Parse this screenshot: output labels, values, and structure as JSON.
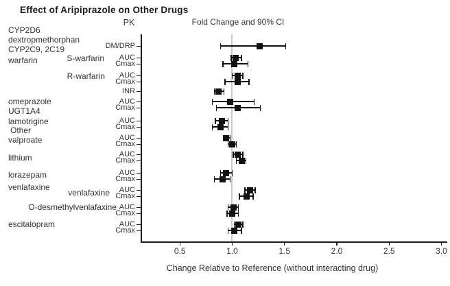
{
  "title": "Effect of Aripiprazole on Other Drugs",
  "headers": {
    "pk": "PK",
    "fold_change": "Fold Change and 90% CI"
  },
  "x_axis": {
    "label": "Change Relative to Reference (without interacting drug)",
    "ticks": [
      "0.5",
      "1.0",
      "1.5",
      "2.0",
      "2.5",
      "3.0"
    ],
    "reference_value": 1.0
  },
  "left_column": {
    "group_labels": [
      "CYP2D6",
      "dextropmethorphan",
      "CYP2C9, 2C19",
      "warfarin",
      "omeprazole",
      "UGT1A4",
      "lamotrigine",
      "Other",
      "valproate",
      "lithium",
      "lorazepam",
      "venlafaxine",
      "escitalopram"
    ],
    "sub_labels": [
      "S-warfarin",
      "R-warfarin",
      "venlafaxine",
      "O-desmethylvenlafaxine"
    ]
  },
  "chart_data": {
    "type": "scatter",
    "variant": "forest-plot",
    "title": "Effect of Aripiprazole on Other Drugs",
    "column_header": "Fold Change and 90% CI",
    "xlabel": "Change Relative to Reference (without interacting drug)",
    "xlim": [
      0.12,
      3.05
    ],
    "x_ticks": [
      0.5,
      1.0,
      1.5,
      2.0,
      2.5,
      3.0
    ],
    "reference_line_x": 1.0,
    "marker": "black-square",
    "ci_level": "90%",
    "rows": [
      {
        "section": "CYP2D6",
        "drug": "dextropmethorphan",
        "analyte": "",
        "pk": "DM/DRP",
        "value": 1.26,
        "ci_low": 0.89,
        "ci_high": 1.51
      },
      {
        "section": "CYP2C9, 2C19",
        "drug": "warfarin",
        "analyte": "S-warfarin",
        "pk": "AUC",
        "value": 1.03,
        "ci_low": 0.99,
        "ci_high": 1.09
      },
      {
        "section": "CYP2C9, 2C19",
        "drug": "warfarin",
        "analyte": "S-warfarin",
        "pk": "Cmax",
        "value": 1.02,
        "ci_low": 0.91,
        "ci_high": 1.15
      },
      {
        "section": "CYP2C9, 2C19",
        "drug": "warfarin",
        "analyte": "R-warfarin",
        "pk": "AUC",
        "value": 1.05,
        "ci_low": 1.0,
        "ci_high": 1.1
      },
      {
        "section": "CYP2C9, 2C19",
        "drug": "warfarin",
        "analyte": "R-warfarin",
        "pk": "Cmax",
        "value": 1.05,
        "ci_low": 0.93,
        "ci_high": 1.16
      },
      {
        "section": "CYP2C9, 2C19",
        "drug": "warfarin",
        "analyte": "",
        "pk": "INR",
        "value": 0.87,
        "ci_low": 0.83,
        "ci_high": 0.92
      },
      {
        "section": "CYP2C9, 2C19",
        "drug": "omeprazole",
        "analyte": "",
        "pk": "AUC",
        "value": 0.98,
        "ci_low": 0.81,
        "ci_high": 1.21
      },
      {
        "section": "CYP2C9, 2C19",
        "drug": "omeprazole",
        "analyte": "",
        "pk": "Cmax",
        "value": 1.05,
        "ci_low": 0.85,
        "ci_high": 1.27
      },
      {
        "section": "UGT1A4",
        "drug": "lamotrigine",
        "analyte": "",
        "pk": "AUC",
        "value": 0.9,
        "ci_low": 0.84,
        "ci_high": 0.96
      },
      {
        "section": "UGT1A4",
        "drug": "lamotrigine",
        "analyte": "",
        "pk": "Cmax",
        "value": 0.89,
        "ci_low": 0.81,
        "ci_high": 0.96
      },
      {
        "section": "Other",
        "drug": "valproate",
        "analyte": "",
        "pk": "AUC",
        "value": 0.94,
        "ci_low": 0.92,
        "ci_high": 0.98
      },
      {
        "section": "Other",
        "drug": "valproate",
        "analyte": "",
        "pk": "Cmax",
        "value": 1.0,
        "ci_low": 0.96,
        "ci_high": 1.04
      },
      {
        "section": "Other",
        "drug": "lithium",
        "analyte": "",
        "pk": "AUC",
        "value": 1.05,
        "ci_low": 1.01,
        "ci_high": 1.1
      },
      {
        "section": "Other",
        "drug": "lithium",
        "analyte": "",
        "pk": "Cmax",
        "value": 1.09,
        "ci_low": 1.04,
        "ci_high": 1.13
      },
      {
        "section": "Other",
        "drug": "lorazepam",
        "analyte": "",
        "pk": "AUC",
        "value": 0.94,
        "ci_low": 0.89,
        "ci_high": 1.0
      },
      {
        "section": "Other",
        "drug": "lorazepam",
        "analyte": "",
        "pk": "Cmax",
        "value": 0.91,
        "ci_low": 0.83,
        "ci_high": 0.98
      },
      {
        "section": "Other",
        "drug": "venlafaxine",
        "analyte": "venlafaxine",
        "pk": "AUC",
        "value": 1.17,
        "ci_low": 1.12,
        "ci_high": 1.22
      },
      {
        "section": "Other",
        "drug": "venlafaxine",
        "analyte": "venlafaxine",
        "pk": "Cmax",
        "value": 1.14,
        "ci_low": 1.07,
        "ci_high": 1.2
      },
      {
        "section": "Other",
        "drug": "venlafaxine",
        "analyte": "O-desmethylvenlafaxine",
        "pk": "AUC",
        "value": 1.01,
        "ci_low": 0.96,
        "ci_high": 1.06
      },
      {
        "section": "Other",
        "drug": "venlafaxine",
        "analyte": "O-desmethylvenlafaxine",
        "pk": "Cmax",
        "value": 1.0,
        "ci_low": 0.95,
        "ci_high": 1.06
      },
      {
        "section": "Other",
        "drug": "escitalopram",
        "analyte": "",
        "pk": "AUC",
        "value": 1.06,
        "ci_low": 1.02,
        "ci_high": 1.1
      },
      {
        "section": "Other",
        "drug": "escitalopram",
        "analyte": "",
        "pk": "Cmax",
        "value": 1.02,
        "ci_low": 0.96,
        "ci_high": 1.09
      }
    ]
  }
}
